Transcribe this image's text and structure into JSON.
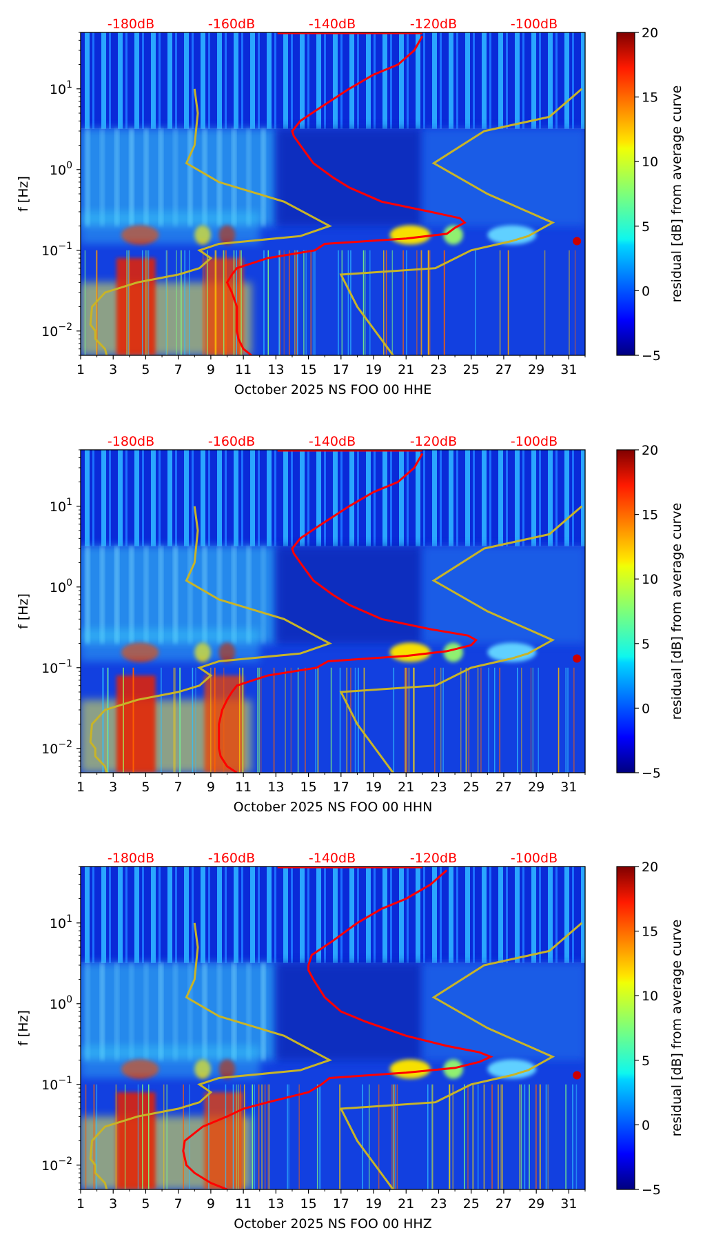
{
  "chart_data": [
    {
      "type": "heatmap",
      "subtype": "spectrogram",
      "xlabel": "October 2025 NS FOO 00 HHE",
      "ylabel": "f [Hz]",
      "y_scale": "log",
      "ylim": [
        0.005,
        50
      ],
      "xlim": [
        1,
        32
      ],
      "x_ticks": [
        "1",
        "3",
        "5",
        "7",
        "9",
        "11",
        "13",
        "15",
        "17",
        "19",
        "21",
        "23",
        "25",
        "27",
        "29",
        "31"
      ],
      "y_ticks": [
        {
          "value": 0.01,
          "base": "10",
          "exp": "−2"
        },
        {
          "value": 0.1,
          "base": "10",
          "exp": "−1"
        },
        {
          "value": 1,
          "base": "10",
          "exp": "0"
        },
        {
          "value": 10,
          "base": "10",
          "exp": "1"
        }
      ],
      "colorbar": {
        "label": "residual [dB] from average curve",
        "colormap": "jet",
        "min": -5,
        "max": 20,
        "ticks": [
          "−5",
          "0",
          "5",
          "10",
          "15",
          "20"
        ]
      },
      "top_db_labels": [
        "-180dB",
        "-160dB",
        "-140dB",
        "-120dB",
        "-100dB"
      ],
      "db_label_color": "#ff0000",
      "mean_curve_color": "#ff0000",
      "noise_model_color": "#c8b428",
      "mean_curve": [
        [
          0.005,
          11.5
        ],
        [
          0.006,
          11
        ],
        [
          0.008,
          10.7
        ],
        [
          0.01,
          10.6
        ],
        [
          0.015,
          10.6
        ],
        [
          0.02,
          10.6
        ],
        [
          0.03,
          10.3
        ],
        [
          0.04,
          10
        ],
        [
          0.05,
          10.3
        ],
        [
          0.06,
          10.6
        ],
        [
          0.08,
          12.5
        ],
        [
          0.1,
          15.4
        ],
        [
          0.12,
          16
        ],
        [
          0.14,
          21
        ],
        [
          0.16,
          23.5
        ],
        [
          0.19,
          24
        ],
        [
          0.22,
          24.6
        ],
        [
          0.25,
          24.3
        ],
        [
          0.3,
          22.5
        ],
        [
          0.4,
          19.5
        ],
        [
          0.6,
          17.5
        ],
        [
          0.8,
          16.5
        ],
        [
          1.2,
          15.3
        ],
        [
          2,
          14.5
        ],
        [
          2.6,
          14.1
        ],
        [
          3,
          14
        ],
        [
          4,
          14.5
        ],
        [
          6,
          15.8
        ],
        [
          10,
          17.5
        ],
        [
          15,
          19
        ],
        [
          20,
          20.5
        ],
        [
          30,
          21.5
        ],
        [
          45,
          22
        ]
      ]
    },
    {
      "type": "heatmap",
      "subtype": "spectrogram",
      "xlabel": "October 2025 NS FOO 00 HHN",
      "ylabel": "f [Hz]",
      "y_scale": "log",
      "ylim": [
        0.005,
        50
      ],
      "xlim": [
        1,
        32
      ],
      "x_ticks": [
        "1",
        "3",
        "5",
        "7",
        "9",
        "11",
        "13",
        "15",
        "17",
        "19",
        "21",
        "23",
        "25",
        "27",
        "29",
        "31"
      ],
      "y_ticks": [
        {
          "value": 0.01,
          "base": "10",
          "exp": "−2"
        },
        {
          "value": 0.1,
          "base": "10",
          "exp": "−1"
        },
        {
          "value": 1,
          "base": "10",
          "exp": "0"
        },
        {
          "value": 10,
          "base": "10",
          "exp": "1"
        }
      ],
      "colorbar": {
        "label": "residual [dB] from average curve",
        "colormap": "jet",
        "min": -5,
        "max": 20,
        "ticks": [
          "−5",
          "0",
          "5",
          "10",
          "15",
          "20"
        ]
      },
      "top_db_labels": [
        "-180dB",
        "-160dB",
        "-140dB",
        "-120dB",
        "-100dB"
      ],
      "db_label_color": "#ff0000",
      "mean_curve_color": "#ff0000",
      "noise_model_color": "#c8b428",
      "mean_curve": [
        [
          0.005,
          10.6
        ],
        [
          0.006,
          10
        ],
        [
          0.008,
          9.6
        ],
        [
          0.01,
          9.5
        ],
        [
          0.015,
          9.5
        ],
        [
          0.02,
          9.5
        ],
        [
          0.03,
          9.7
        ],
        [
          0.04,
          10
        ],
        [
          0.05,
          10.3
        ],
        [
          0.06,
          10.6
        ],
        [
          0.08,
          12.5
        ],
        [
          0.1,
          15.5
        ],
        [
          0.12,
          16.2
        ],
        [
          0.14,
          21
        ],
        [
          0.16,
          23.5
        ],
        [
          0.19,
          25
        ],
        [
          0.22,
          25.3
        ],
        [
          0.25,
          24.8
        ],
        [
          0.3,
          22.5
        ],
        [
          0.4,
          19.5
        ],
        [
          0.6,
          17.5
        ],
        [
          0.8,
          16.5
        ],
        [
          1.2,
          15.3
        ],
        [
          2,
          14.5
        ],
        [
          2.6,
          14.1
        ],
        [
          3,
          14
        ],
        [
          4,
          14.5
        ],
        [
          6,
          15.8
        ],
        [
          10,
          17.5
        ],
        [
          15,
          19
        ],
        [
          20,
          20.5
        ],
        [
          30,
          21.5
        ],
        [
          45,
          22
        ]
      ]
    },
    {
      "type": "heatmap",
      "subtype": "spectrogram",
      "xlabel": "October 2025 NS FOO 00 HHZ",
      "ylabel": "f [Hz]",
      "y_scale": "log",
      "ylim": [
        0.005,
        50
      ],
      "xlim": [
        1,
        32
      ],
      "x_ticks": [
        "1",
        "3",
        "5",
        "7",
        "9",
        "11",
        "13",
        "15",
        "17",
        "19",
        "21",
        "23",
        "25",
        "27",
        "29",
        "31"
      ],
      "y_ticks": [
        {
          "value": 0.01,
          "base": "10",
          "exp": "−2"
        },
        {
          "value": 0.1,
          "base": "10",
          "exp": "−1"
        },
        {
          "value": 1,
          "base": "10",
          "exp": "0"
        },
        {
          "value": 10,
          "base": "10",
          "exp": "1"
        }
      ],
      "colorbar": {
        "label": "residual [dB] from average curve",
        "colormap": "jet",
        "min": -5,
        "max": 20,
        "ticks": [
          "−5",
          "0",
          "5",
          "10",
          "15",
          "20"
        ]
      },
      "top_db_labels": [
        "-180dB",
        "-160dB",
        "-140dB",
        "-120dB",
        "-100dB"
      ],
      "db_label_color": "#ff0000",
      "mean_curve_color": "#ff0000",
      "noise_model_color": "#c8b428",
      "mean_curve": [
        [
          0.005,
          10
        ],
        [
          0.006,
          9
        ],
        [
          0.008,
          8
        ],
        [
          0.01,
          7.5
        ],
        [
          0.015,
          7.3
        ],
        [
          0.02,
          7.4
        ],
        [
          0.03,
          8.5
        ],
        [
          0.04,
          10
        ],
        [
          0.05,
          11
        ],
        [
          0.06,
          12.5
        ],
        [
          0.08,
          15
        ],
        [
          0.1,
          15.8
        ],
        [
          0.12,
          16.3
        ],
        [
          0.14,
          21
        ],
        [
          0.16,
          24
        ],
        [
          0.19,
          25.5
        ],
        [
          0.22,
          26.2
        ],
        [
          0.25,
          25.5
        ],
        [
          0.3,
          23.5
        ],
        [
          0.4,
          21
        ],
        [
          0.6,
          18.5
        ],
        [
          0.8,
          17
        ],
        [
          1.2,
          16
        ],
        [
          2,
          15.3
        ],
        [
          2.6,
          15
        ],
        [
          3,
          15
        ],
        [
          4,
          15.2
        ],
        [
          6,
          16.5
        ],
        [
          10,
          18
        ],
        [
          15,
          19.5
        ],
        [
          20,
          21
        ],
        [
          30,
          22.5
        ],
        [
          45,
          23.5
        ]
      ]
    }
  ]
}
